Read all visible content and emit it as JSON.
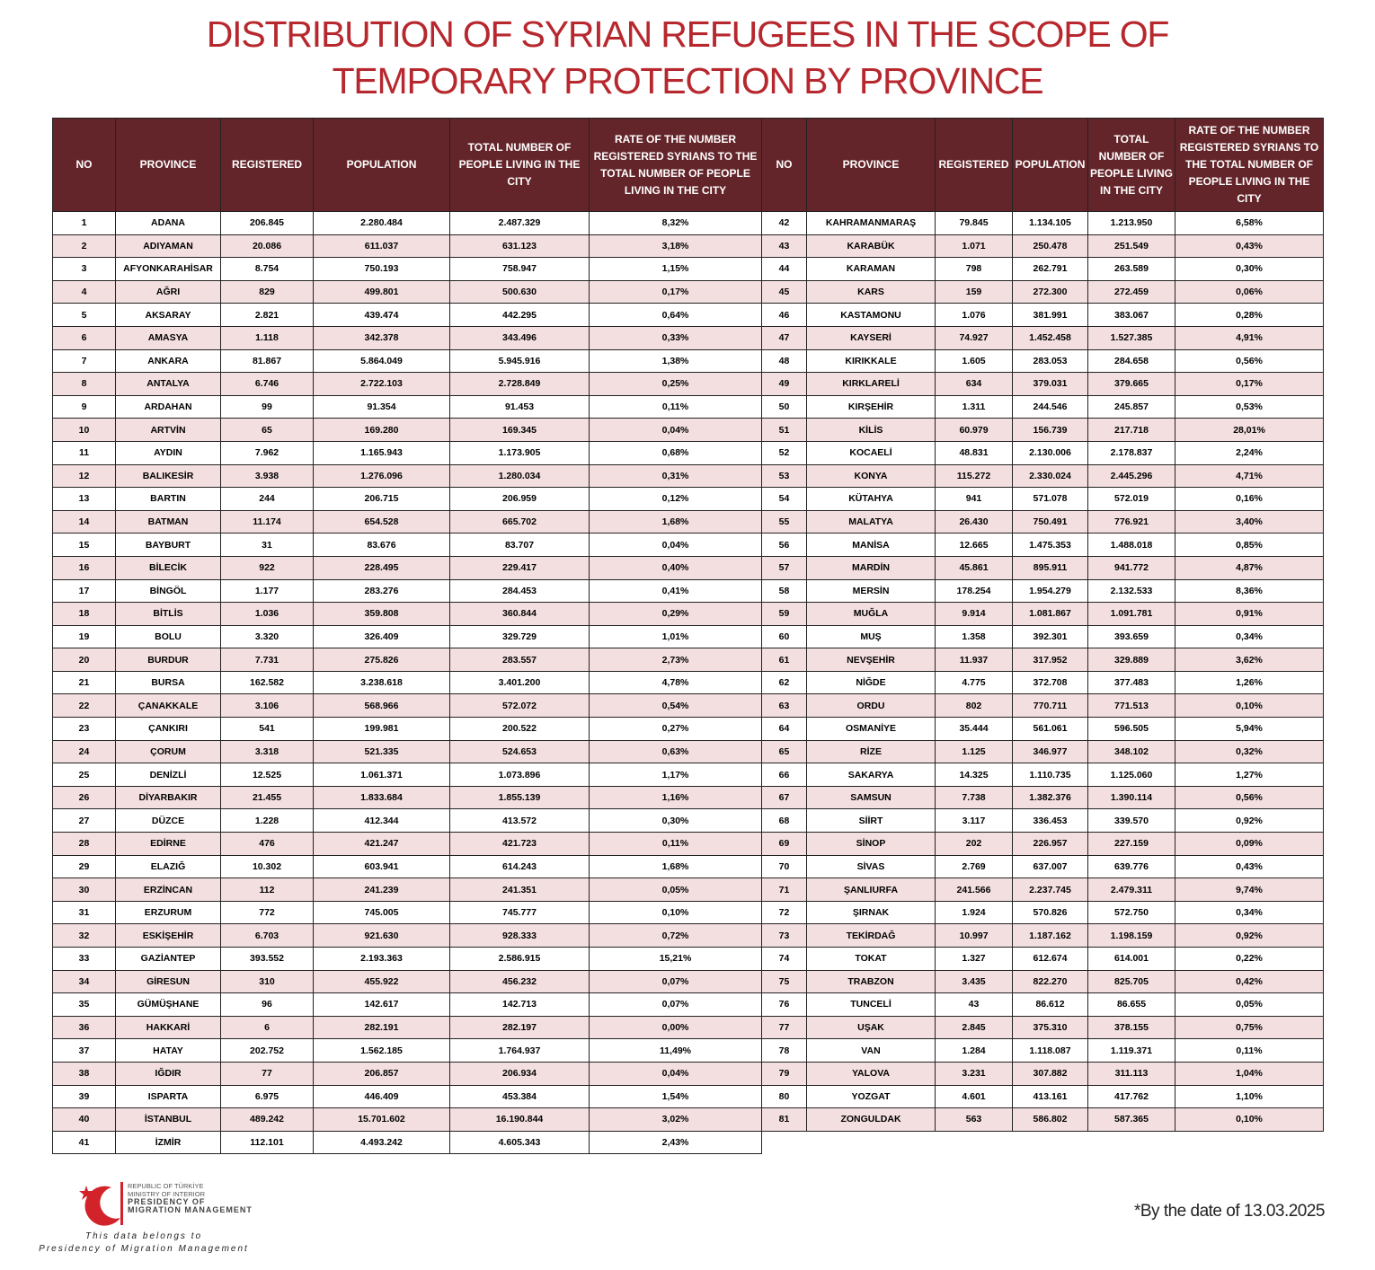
{
  "title": "DISTRIBUTION OF SYRIAN REFUGEES IN THE SCOPE OF TEMPORARY PROTECTION BY PROVINCE",
  "tables": [
    {
      "headers": [
        "NO",
        "PROVINCE",
        "REGISTERED",
        "POPULATION",
        "TOTAL NUMBER OF PEOPLE LIVING IN THE CITY",
        "RATE OF THE NUMBER REGISTERED SYRIANS TO THE TOTAL NUMBER OF PEOPLE LIVING IN THE CITY"
      ],
      "rows": [
        [
          "1",
          "ADANA",
          "206.845",
          "2.280.484",
          "2.487.329",
          "8,32%"
        ],
        [
          "2",
          "ADIYAMAN",
          "20.086",
          "611.037",
          "631.123",
          "3,18%"
        ],
        [
          "3",
          "AFYONKARAHİSAR",
          "8.754",
          "750.193",
          "758.947",
          "1,15%"
        ],
        [
          "4",
          "AĞRI",
          "829",
          "499.801",
          "500.630",
          "0,17%"
        ],
        [
          "5",
          "AKSARAY",
          "2.821",
          "439.474",
          "442.295",
          "0,64%"
        ],
        [
          "6",
          "AMASYA",
          "1.118",
          "342.378",
          "343.496",
          "0,33%"
        ],
        [
          "7",
          "ANKARA",
          "81.867",
          "5.864.049",
          "5.945.916",
          "1,38%"
        ],
        [
          "8",
          "ANTALYA",
          "6.746",
          "2.722.103",
          "2.728.849",
          "0,25%"
        ],
        [
          "9",
          "ARDAHAN",
          "99",
          "91.354",
          "91.453",
          "0,11%"
        ],
        [
          "10",
          "ARTVİN",
          "65",
          "169.280",
          "169.345",
          "0,04%"
        ],
        [
          "11",
          "AYDIN",
          "7.962",
          "1.165.943",
          "1.173.905",
          "0,68%"
        ],
        [
          "12",
          "BALIKESİR",
          "3.938",
          "1.276.096",
          "1.280.034",
          "0,31%"
        ],
        [
          "13",
          "BARTIN",
          "244",
          "206.715",
          "206.959",
          "0,12%"
        ],
        [
          "14",
          "BATMAN",
          "11.174",
          "654.528",
          "665.702",
          "1,68%"
        ],
        [
          "15",
          "BAYBURT",
          "31",
          "83.676",
          "83.707",
          "0,04%"
        ],
        [
          "16",
          "BİLECİK",
          "922",
          "228.495",
          "229.417",
          "0,40%"
        ],
        [
          "17",
          "BİNGÖL",
          "1.177",
          "283.276",
          "284.453",
          "0,41%"
        ],
        [
          "18",
          "BİTLİS",
          "1.036",
          "359.808",
          "360.844",
          "0,29%"
        ],
        [
          "19",
          "BOLU",
          "3.320",
          "326.409",
          "329.729",
          "1,01%"
        ],
        [
          "20",
          "BURDUR",
          "7.731",
          "275.826",
          "283.557",
          "2,73%"
        ],
        [
          "21",
          "BURSA",
          "162.582",
          "3.238.618",
          "3.401.200",
          "4,78%"
        ],
        [
          "22",
          "ÇANAKKALE",
          "3.106",
          "568.966",
          "572.072",
          "0,54%"
        ],
        [
          "23",
          "ÇANKIRI",
          "541",
          "199.981",
          "200.522",
          "0,27%"
        ],
        [
          "24",
          "ÇORUM",
          "3.318",
          "521.335",
          "524.653",
          "0,63%"
        ],
        [
          "25",
          "DENİZLİ",
          "12.525",
          "1.061.371",
          "1.073.896",
          "1,17%"
        ],
        [
          "26",
          "DİYARBAKIR",
          "21.455",
          "1.833.684",
          "1.855.139",
          "1,16%"
        ],
        [
          "27",
          "DÜZCE",
          "1.228",
          "412.344",
          "413.572",
          "0,30%"
        ],
        [
          "28",
          "EDİRNE",
          "476",
          "421.247",
          "421.723",
          "0,11%"
        ],
        [
          "29",
          "ELAZIĞ",
          "10.302",
          "603.941",
          "614.243",
          "1,68%"
        ],
        [
          "30",
          "ERZİNCAN",
          "112",
          "241.239",
          "241.351",
          "0,05%"
        ],
        [
          "31",
          "ERZURUM",
          "772",
          "745.005",
          "745.777",
          "0,10%"
        ],
        [
          "32",
          "ESKİŞEHİR",
          "6.703",
          "921.630",
          "928.333",
          "0,72%"
        ],
        [
          "33",
          "GAZİANTEP",
          "393.552",
          "2.193.363",
          "2.586.915",
          "15,21%"
        ],
        [
          "34",
          "GİRESUN",
          "310",
          "455.922",
          "456.232",
          "0,07%"
        ],
        [
          "35",
          "GÜMÜŞHANE",
          "96",
          "142.617",
          "142.713",
          "0,07%"
        ],
        [
          "36",
          "HAKKARİ",
          "6",
          "282.191",
          "282.197",
          "0,00%"
        ],
        [
          "37",
          "HATAY",
          "202.752",
          "1.562.185",
          "1.764.937",
          "11,49%"
        ],
        [
          "38",
          "IĞDIR",
          "77",
          "206.857",
          "206.934",
          "0,04%"
        ],
        [
          "39",
          "ISPARTA",
          "6.975",
          "446.409",
          "453.384",
          "1,54%"
        ],
        [
          "40",
          "İSTANBUL",
          "489.242",
          "15.701.602",
          "16.190.844",
          "3,02%"
        ],
        [
          "41",
          "İZMİR",
          "112.101",
          "4.493.242",
          "4.605.343",
          "2,43%"
        ]
      ]
    },
    {
      "headers": [
        "NO",
        "PROVINCE",
        "REGISTERED",
        "POPULATION",
        "TOTAL NUMBER OF PEOPLE LIVING IN THE CITY",
        "RATE OF THE NUMBER REGISTERED SYRIANS TO THE TOTAL NUMBER OF PEOPLE LIVING IN THE CITY"
      ],
      "rows": [
        [
          "42",
          "KAHRAMANMARAŞ",
          "79.845",
          "1.134.105",
          "1.213.950",
          "6,58%"
        ],
        [
          "43",
          "KARABÜK",
          "1.071",
          "250.478",
          "251.549",
          "0,43%"
        ],
        [
          "44",
          "KARAMAN",
          "798",
          "262.791",
          "263.589",
          "0,30%"
        ],
        [
          "45",
          "KARS",
          "159",
          "272.300",
          "272.459",
          "0,06%"
        ],
        [
          "46",
          "KASTAMONU",
          "1.076",
          "381.991",
          "383.067",
          "0,28%"
        ],
        [
          "47",
          "KAYSERİ",
          "74.927",
          "1.452.458",
          "1.527.385",
          "4,91%"
        ],
        [
          "48",
          "KIRIKKALE",
          "1.605",
          "283.053",
          "284.658",
          "0,56%"
        ],
        [
          "49",
          "KIRKLARELİ",
          "634",
          "379.031",
          "379.665",
          "0,17%"
        ],
        [
          "50",
          "KIRŞEHİR",
          "1.311",
          "244.546",
          "245.857",
          "0,53%"
        ],
        [
          "51",
          "KİLİS",
          "60.979",
          "156.739",
          "217.718",
          "28,01%"
        ],
        [
          "52",
          "KOCAELİ",
          "48.831",
          "2.130.006",
          "2.178.837",
          "2,24%"
        ],
        [
          "53",
          "KONYA",
          "115.272",
          "2.330.024",
          "2.445.296",
          "4,71%"
        ],
        [
          "54",
          "KÜTAHYA",
          "941",
          "571.078",
          "572.019",
          "0,16%"
        ],
        [
          "55",
          "MALATYA",
          "26.430",
          "750.491",
          "776.921",
          "3,40%"
        ],
        [
          "56",
          "MANİSA",
          "12.665",
          "1.475.353",
          "1.488.018",
          "0,85%"
        ],
        [
          "57",
          "MARDİN",
          "45.861",
          "895.911",
          "941.772",
          "4,87%"
        ],
        [
          "58",
          "MERSİN",
          "178.254",
          "1.954.279",
          "2.132.533",
          "8,36%"
        ],
        [
          "59",
          "MUĞLA",
          "9.914",
          "1.081.867",
          "1.091.781",
          "0,91%"
        ],
        [
          "60",
          "MUŞ",
          "1.358",
          "392.301",
          "393.659",
          "0,34%"
        ],
        [
          "61",
          "NEVŞEHİR",
          "11.937",
          "317.952",
          "329.889",
          "3,62%"
        ],
        [
          "62",
          "NİĞDE",
          "4.775",
          "372.708",
          "377.483",
          "1,26%"
        ],
        [
          "63",
          "ORDU",
          "802",
          "770.711",
          "771.513",
          "0,10%"
        ],
        [
          "64",
          "OSMANİYE",
          "35.444",
          "561.061",
          "596.505",
          "5,94%"
        ],
        [
          "65",
          "RİZE",
          "1.125",
          "346.977",
          "348.102",
          "0,32%"
        ],
        [
          "66",
          "SAKARYA",
          "14.325",
          "1.110.735",
          "1.125.060",
          "1,27%"
        ],
        [
          "67",
          "SAMSUN",
          "7.738",
          "1.382.376",
          "1.390.114",
          "0,56%"
        ],
        [
          "68",
          "SİİRT",
          "3.117",
          "336.453",
          "339.570",
          "0,92%"
        ],
        [
          "69",
          "SİNOP",
          "202",
          "226.957",
          "227.159",
          "0,09%"
        ],
        [
          "70",
          "SİVAS",
          "2.769",
          "637.007",
          "639.776",
          "0,43%"
        ],
        [
          "71",
          "ŞANLIURFA",
          "241.566",
          "2.237.745",
          "2.479.311",
          "9,74%"
        ],
        [
          "72",
          "ŞIRNAK",
          "1.924",
          "570.826",
          "572.750",
          "0,34%"
        ],
        [
          "73",
          "TEKİRDAĞ",
          "10.997",
          "1.187.162",
          "1.198.159",
          "0,92%"
        ],
        [
          "74",
          "TOKAT",
          "1.327",
          "612.674",
          "614.001",
          "0,22%"
        ],
        [
          "75",
          "TRABZON",
          "3.435",
          "822.270",
          "825.705",
          "0,42%"
        ],
        [
          "76",
          "TUNCELİ",
          "43",
          "86.612",
          "86.655",
          "0,05%"
        ],
        [
          "77",
          "UŞAK",
          "2.845",
          "375.310",
          "378.155",
          "0,75%"
        ],
        [
          "78",
          "VAN",
          "1.284",
          "1.118.087",
          "1.119.371",
          "0,11%"
        ],
        [
          "79",
          "YALOVA",
          "3.231",
          "307.882",
          "311.113",
          "1,04%"
        ],
        [
          "80",
          "YOZGAT",
          "4.601",
          "413.161",
          "417.762",
          "1,10%"
        ],
        [
          "81",
          "ZONGULDAK",
          "563",
          "586.802",
          "587.365",
          "0,10%"
        ]
      ]
    }
  ],
  "logo": [
    "REPUBLIC OF TÜRKİYE",
    "MINISTRY OF INTERIOR",
    "PRESIDENCY OF",
    "MIGRATION MANAGEMENT"
  ],
  "note": [
    "This data belongs to",
    "Presidency of Migration Management"
  ],
  "date_note": "*By the date of 13.03.2025"
}
